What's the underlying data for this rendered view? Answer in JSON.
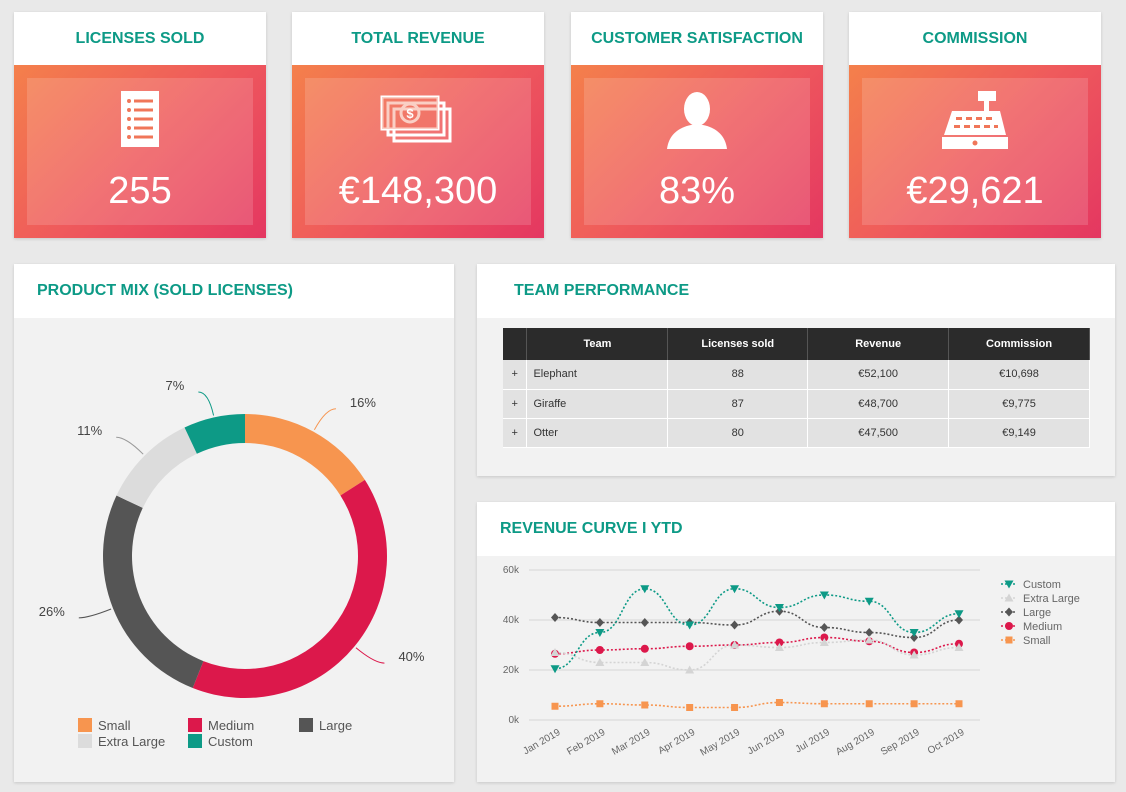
{
  "kpis": [
    {
      "title": "LICENSES SOLD",
      "value": "255",
      "icon": "list-icon"
    },
    {
      "title": "TOTAL REVENUE",
      "value": "€148,300",
      "icon": "money-icon"
    },
    {
      "title": "CUSTOMER SATISFACTION",
      "value": "83%",
      "icon": "user-icon"
    },
    {
      "title": "COMMISSION",
      "value": "€29,621",
      "icon": "cash-register-icon"
    }
  ],
  "product_mix": {
    "title": "PRODUCT MIX (SOLD LICENSES)"
  },
  "team": {
    "title": "TEAM PERFORMANCE",
    "headers": [
      "",
      "Team",
      "Licenses sold",
      "Revenue",
      "Commission"
    ],
    "rows": [
      {
        "expand": "+",
        "team": "Elephant",
        "licenses": "88",
        "revenue": "€52,100",
        "commission": "€10,698"
      },
      {
        "expand": "+",
        "team": "Giraffe",
        "licenses": "87",
        "revenue": "€48,700",
        "commission": "€9,775"
      },
      {
        "expand": "+",
        "team": "Otter",
        "licenses": "80",
        "revenue": "€47,500",
        "commission": "€9,149"
      }
    ]
  },
  "revenue": {
    "title": "REVENUE CURVE I YTD"
  },
  "chart_data": [
    {
      "type": "pie",
      "title": "PRODUCT MIX (SOLD LICENSES)",
      "categories": [
        "Small",
        "Medium",
        "Large",
        "Extra Large",
        "Custom"
      ],
      "values": [
        16,
        40,
        26,
        11,
        7
      ],
      "labels": [
        "16%",
        "40%",
        "26%",
        "11%",
        "7%"
      ],
      "colors": [
        "#f7954f",
        "#dc184b",
        "#555555",
        "#dcdcdc",
        "#0d9a86"
      ],
      "legend_position": "bottom"
    },
    {
      "type": "line",
      "title": "REVENUE CURVE I YTD",
      "x": [
        "Jan 2019",
        "Feb 2019",
        "Mar 2019",
        "Apr 2019",
        "May 2019",
        "Jun 2019",
        "Jul 2019",
        "Aug 2019",
        "Sep 2019",
        "Oct 2019"
      ],
      "ylim": [
        0,
        60000
      ],
      "yticks": [
        0,
        20000,
        40000,
        60000
      ],
      "ytick_labels": [
        "0k",
        "20k",
        "40k",
        "60k"
      ],
      "grid": true,
      "legend_position": "right",
      "series": [
        {
          "name": "Custom",
          "color": "#0d9a86",
          "marker": "triangle-down",
          "values": [
            20500,
            35000,
            52500,
            38000,
            52500,
            45000,
            50000,
            47500,
            35000,
            42500
          ]
        },
        {
          "name": "Extra Large",
          "color": "#d4d4d4",
          "marker": "triangle-up",
          "values": [
            27000,
            23000,
            23000,
            20000,
            30000,
            29000,
            31000,
            32000,
            26000,
            29000
          ]
        },
        {
          "name": "Large",
          "color": "#555555",
          "marker": "diamond",
          "values": [
            41000,
            39000,
            39000,
            39000,
            38000,
            43500,
            37000,
            35000,
            33000,
            40000
          ]
        },
        {
          "name": "Medium",
          "color": "#dc184b",
          "marker": "circle",
          "values": [
            26500,
            28000,
            28500,
            29500,
            30000,
            31000,
            33000,
            31500,
            27000,
            30500
          ]
        },
        {
          "name": "Small",
          "color": "#f7954f",
          "marker": "square",
          "values": [
            5500,
            6500,
            6000,
            5000,
            5000,
            7000,
            6500,
            6500,
            6500,
            6500
          ]
        }
      ]
    }
  ]
}
